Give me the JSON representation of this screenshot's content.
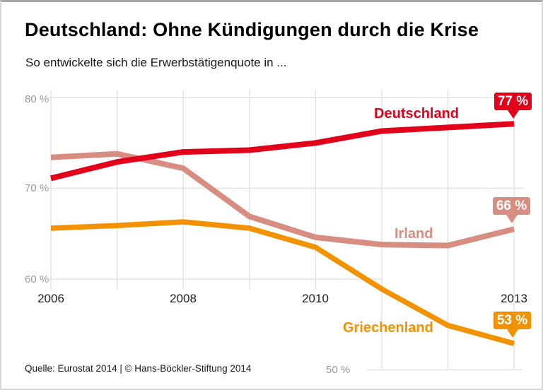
{
  "chart_data": {
    "type": "line",
    "title": "Deutschland: Ohne Kündigungen durch die Krise",
    "subtitle": "So entwickelte sich die Erwerbstätigenquote in ...",
    "source": "Quelle: Eurostat 2014 | © Hans-Böckler-Stiftung 2014",
    "x": [
      2006,
      2007,
      2008,
      2009,
      2010,
      2011,
      2012,
      2013
    ],
    "x_tick_labels": [
      "2006",
      "2008",
      "2010",
      "2013"
    ],
    "y_tick_labels": [
      "80 %",
      "70 %",
      "60 %",
      "50 %"
    ],
    "xlim": [
      2006,
      2013
    ],
    "ylim": [
      50,
      80
    ],
    "grid": true,
    "legend_position": "inline-labels",
    "series": [
      {
        "name": "Deutschland",
        "color": "#e2001a",
        "values": [
          71.1,
          72.9,
          74.0,
          74.2,
          75.0,
          76.3,
          76.7,
          77.1
        ],
        "end_label": "77 %"
      },
      {
        "name": "Irland",
        "color": "#d78d80",
        "values": [
          73.4,
          73.8,
          72.2,
          66.9,
          64.6,
          63.8,
          63.7,
          65.5
        ],
        "end_label": "66 %"
      },
      {
        "name": "Griechenland",
        "color": "#f39200",
        "values": [
          65.6,
          65.9,
          66.3,
          65.6,
          63.5,
          58.9,
          54.9,
          52.9
        ],
        "end_label": "53 %"
      }
    ],
    "colors": {
      "grid": "#e4e4e4",
      "tick_gray": "#9b9b9b",
      "text_black": "#1a1a1a"
    }
  }
}
